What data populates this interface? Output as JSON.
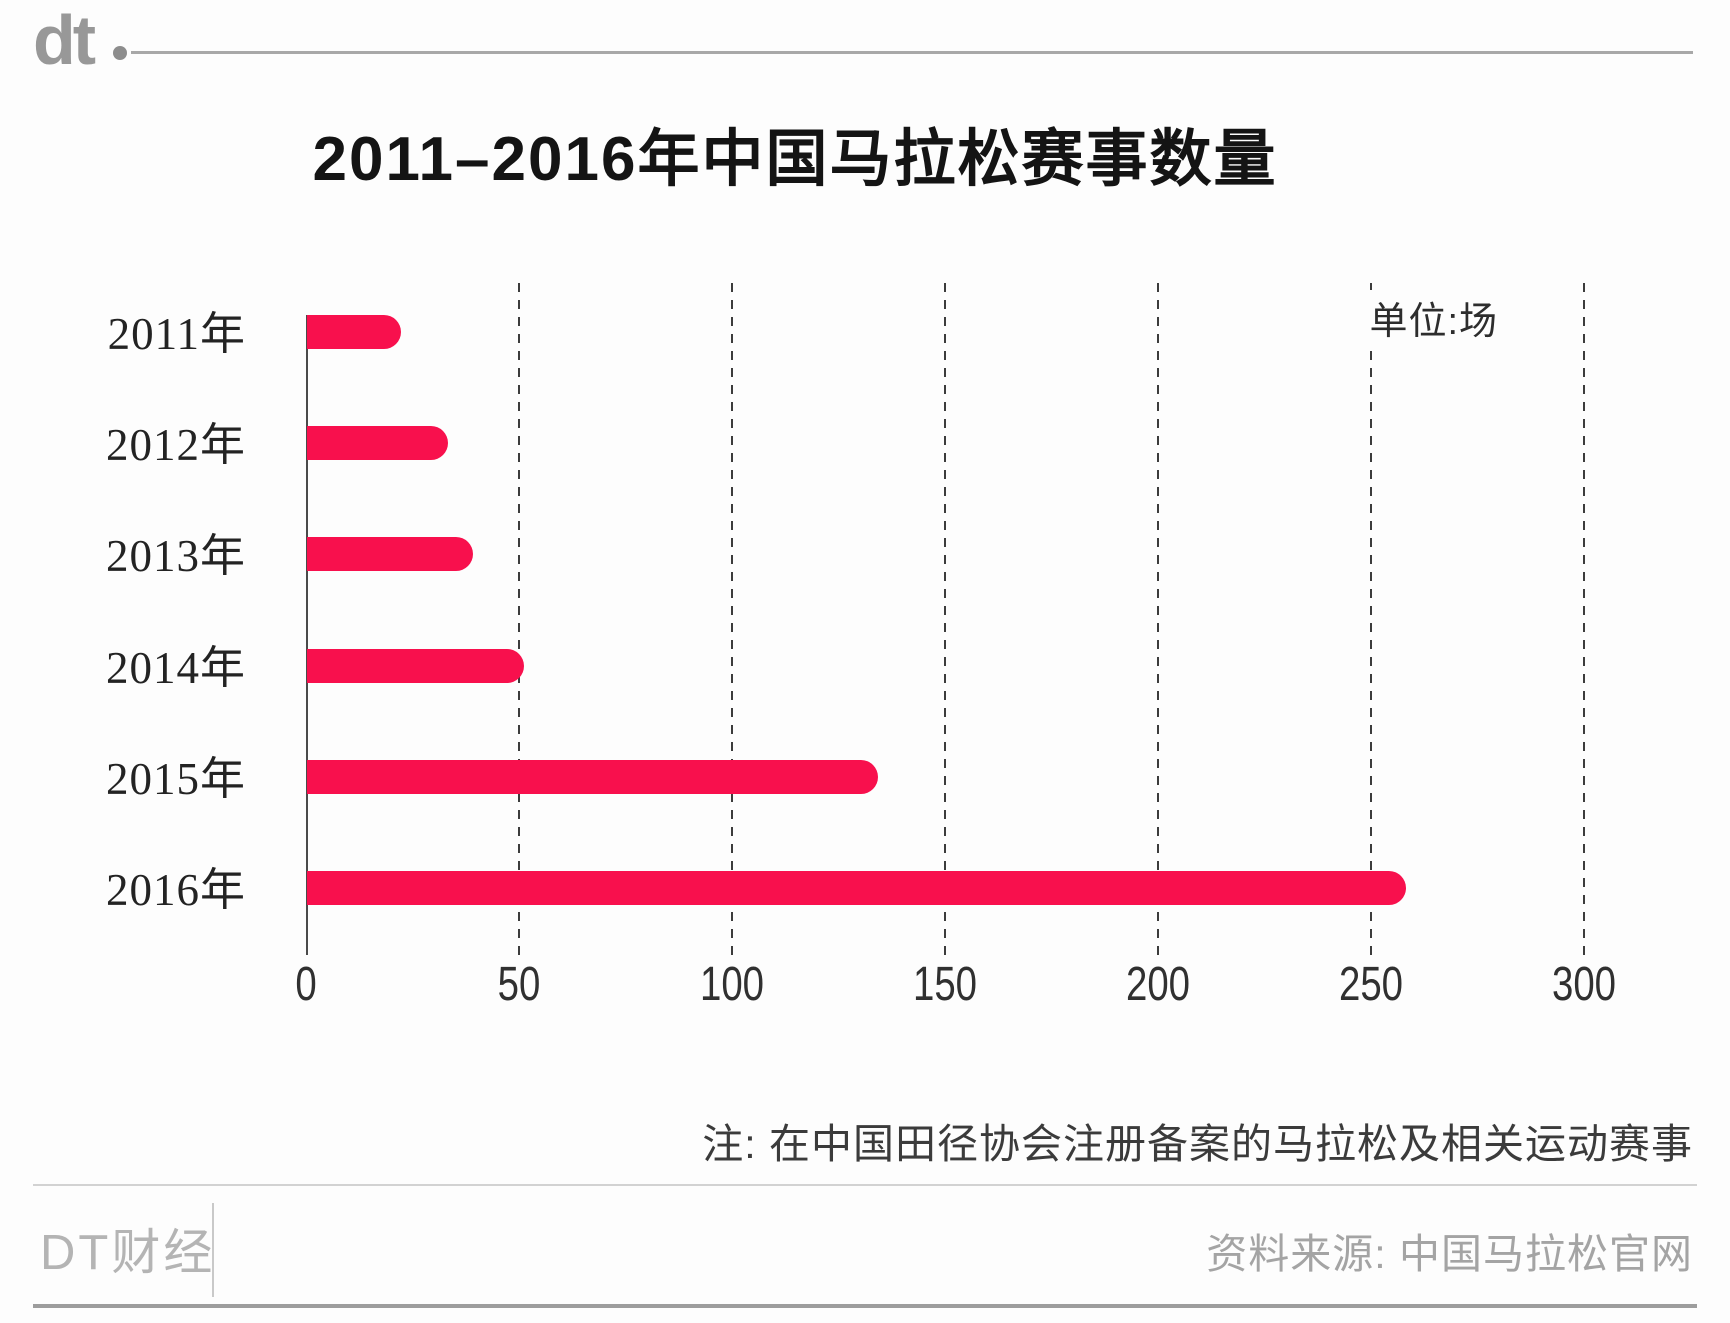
{
  "header": {
    "logo_text": "dt"
  },
  "title": "2011–2016年中国马拉松赛事数量",
  "chart": {
    "unit_label": "单位:场"
  },
  "note": "注: 在中国田径协会注册备案的马拉松及相关运动赛事",
  "footer": {
    "brand": "DT财经",
    "source": "资料来源: 中国马拉松官网"
  },
  "chart_data": {
    "type": "bar",
    "orientation": "horizontal",
    "title": "2011–2016年中国马拉松赛事数量",
    "unit": "场",
    "categories": [
      "2011年",
      "2012年",
      "2013年",
      "2014年",
      "2015年",
      "2016年"
    ],
    "values": [
      22,
      33,
      39,
      51,
      134,
      258
    ],
    "xlim": [
      0,
      300
    ],
    "xticks": [
      0,
      50,
      100,
      150,
      200,
      250,
      300
    ],
    "gridlines": "vertical-dashed",
    "legend": "none",
    "bar_color": "#F8104D",
    "note": "注: 在中国田径协会注册备案的马拉松及相关运动赛事",
    "source": "资料来源: 中国马拉松官网"
  }
}
